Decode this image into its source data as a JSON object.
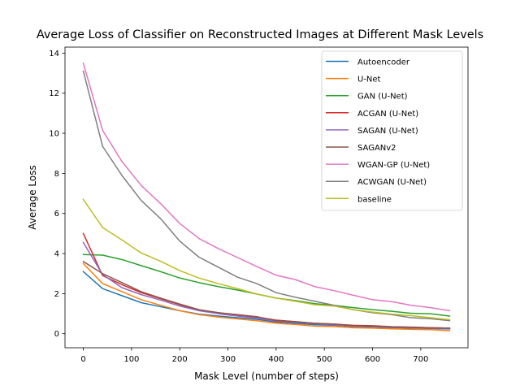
{
  "chart_data": {
    "type": "line",
    "title": "Average Loss of Classifier on Reconstructed Images at Different Mask Levels",
    "xlabel": "Mask Level (number of steps)",
    "ylabel": "Average Loss",
    "xlim": [
      -38,
      798
    ],
    "ylim": [
      -0.7,
      14.3
    ],
    "xticks": [
      0,
      100,
      200,
      300,
      400,
      500,
      600,
      700
    ],
    "yticks": [
      0,
      2,
      4,
      6,
      8,
      10,
      12,
      14
    ],
    "grid": false,
    "legend_position": "upper right",
    "x": [
      0,
      40,
      80,
      120,
      160,
      200,
      240,
      280,
      320,
      360,
      400,
      440,
      480,
      520,
      560,
      600,
      640,
      680,
      720,
      760
    ],
    "series": [
      {
        "name": "Autoencoder",
        "color": "#1f77b4",
        "values": [
          3.1,
          2.25,
          1.9,
          1.55,
          1.35,
          1.15,
          0.98,
          0.88,
          0.8,
          0.72,
          0.58,
          0.52,
          0.45,
          0.42,
          0.36,
          0.34,
          0.3,
          0.28,
          0.26,
          0.24
        ]
      },
      {
        "name": "U-Net",
        "color": "#ff7f0e",
        "values": [
          3.5,
          2.5,
          2.1,
          1.7,
          1.42,
          1.15,
          0.95,
          0.83,
          0.74,
          0.65,
          0.52,
          0.46,
          0.38,
          0.36,
          0.3,
          0.28,
          0.24,
          0.22,
          0.2,
          0.15
        ]
      },
      {
        "name": "GAN (U-Net)",
        "color": "#2ca02c",
        "values": [
          3.95,
          3.92,
          3.7,
          3.4,
          3.1,
          2.78,
          2.55,
          2.35,
          2.18,
          1.98,
          1.78,
          1.65,
          1.5,
          1.42,
          1.3,
          1.2,
          1.12,
          1.02,
          1.0,
          0.88
        ]
      },
      {
        "name": "ACGAN (U-Net)",
        "color": "#d62728",
        "values": [
          5.0,
          2.9,
          2.45,
          2.05,
          1.75,
          1.45,
          1.18,
          1.05,
          0.93,
          0.83,
          0.68,
          0.6,
          0.52,
          0.48,
          0.42,
          0.4,
          0.35,
          0.33,
          0.3,
          0.28
        ]
      },
      {
        "name": "SAGAN (U-Net)",
        "color": "#9467bd",
        "values": [
          4.55,
          2.95,
          2.3,
          1.95,
          1.68,
          1.38,
          1.15,
          1.0,
          0.88,
          0.78,
          0.62,
          0.57,
          0.5,
          0.44,
          0.38,
          0.36,
          0.32,
          0.3,
          0.28,
          0.26
        ]
      },
      {
        "name": "SAGANv2",
        "color": "#8c564b",
        "values": [
          3.6,
          3.0,
          2.55,
          2.1,
          1.78,
          1.48,
          1.2,
          1.05,
          0.95,
          0.85,
          0.65,
          0.6,
          0.52,
          0.48,
          0.4,
          0.38,
          0.34,
          0.32,
          0.3,
          0.28
        ]
      },
      {
        "name": "WGAN-GP (U-Net)",
        "color": "#e377c2",
        "values": [
          13.5,
          10.15,
          8.6,
          7.4,
          6.5,
          5.5,
          4.75,
          4.25,
          3.8,
          3.35,
          2.92,
          2.7,
          2.35,
          2.15,
          1.92,
          1.7,
          1.6,
          1.42,
          1.3,
          1.15
        ]
      },
      {
        "name": "ACWGAN (U-Net)",
        "color": "#7f7f7f",
        "values": [
          13.1,
          9.35,
          7.9,
          6.65,
          5.75,
          4.62,
          3.82,
          3.32,
          2.82,
          2.5,
          2.05,
          1.82,
          1.62,
          1.42,
          1.2,
          1.05,
          0.95,
          0.8,
          0.75,
          0.65
        ]
      },
      {
        "name": "baseline",
        "color": "#bcbd22",
        "values": [
          6.7,
          5.3,
          4.68,
          4.03,
          3.62,
          3.15,
          2.78,
          2.5,
          2.25,
          1.98,
          1.78,
          1.62,
          1.45,
          1.38,
          1.2,
          1.08,
          0.98,
          0.9,
          0.8,
          0.7
        ]
      }
    ]
  }
}
